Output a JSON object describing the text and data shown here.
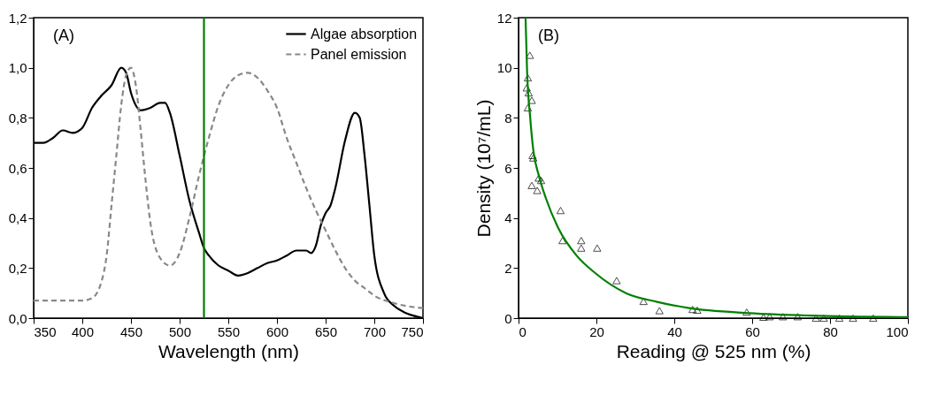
{
  "chart_data": [
    {
      "type": "line",
      "xlabel": "Wavelength (nm)",
      "annotations": [
        "(A)"
      ],
      "xlim": [
        350,
        750
      ],
      "ylim": [
        0,
        1.2
      ],
      "xticks": [
        350,
        400,
        450,
        500,
        550,
        600,
        650,
        700,
        750
      ],
      "yticks": [
        {
          "value": 0,
          "label": "0,0"
        },
        {
          "value": 0.2,
          "label": "0,2"
        },
        {
          "value": 0.4,
          "label": "0,4"
        },
        {
          "value": 0.6,
          "label": "0,6"
        },
        {
          "value": 0.8,
          "label": "0,8"
        },
        {
          "value": 1.0,
          "label": "1,0"
        },
        {
          "value": 1.2,
          "label": "1,2"
        }
      ],
      "legend": "top right",
      "grid": false,
      "ref_lines": [
        {
          "axis": "x",
          "value": 525,
          "color": "#008000"
        }
      ],
      "series": [
        {
          "name": "Algae absorption",
          "color": "#000000",
          "line_style": "solid",
          "x": [
            350,
            360,
            370,
            380,
            390,
            400,
            410,
            420,
            430,
            440,
            445,
            450,
            455,
            460,
            470,
            480,
            485,
            490,
            500,
            510,
            520,
            525,
            530,
            540,
            550,
            560,
            570,
            580,
            590,
            600,
            610,
            620,
            630,
            635,
            640,
            645,
            650,
            655,
            660,
            670,
            680,
            685,
            690,
            695,
            700,
            710,
            720,
            730,
            740,
            750
          ],
          "values": [
            0.7,
            0.7,
            0.72,
            0.75,
            0.74,
            0.76,
            0.84,
            0.89,
            0.93,
            1.0,
            0.98,
            0.9,
            0.85,
            0.83,
            0.84,
            0.86,
            0.86,
            0.82,
            0.65,
            0.47,
            0.34,
            0.28,
            0.25,
            0.21,
            0.19,
            0.17,
            0.18,
            0.2,
            0.22,
            0.23,
            0.25,
            0.27,
            0.27,
            0.26,
            0.29,
            0.37,
            0.42,
            0.45,
            0.52,
            0.71,
            0.82,
            0.8,
            0.65,
            0.45,
            0.25,
            0.1,
            0.05,
            0.025,
            0.01,
            0.0
          ]
        },
        {
          "name": "Panel emission",
          "color": "#888888",
          "line_style": "dashed",
          "x": [
            350,
            400,
            410,
            420,
            425,
            430,
            435,
            440,
            445,
            450,
            455,
            460,
            465,
            470,
            480,
            490,
            500,
            510,
            520,
            530,
            540,
            550,
            560,
            570,
            580,
            590,
            600,
            610,
            620,
            630,
            640,
            650,
            660,
            670,
            680,
            690,
            700,
            720,
            750
          ],
          "values": [
            0.07,
            0.07,
            0.08,
            0.15,
            0.25,
            0.45,
            0.65,
            0.85,
            0.97,
            1.0,
            0.93,
            0.75,
            0.55,
            0.38,
            0.24,
            0.21,
            0.26,
            0.4,
            0.57,
            0.72,
            0.85,
            0.93,
            0.97,
            0.98,
            0.96,
            0.91,
            0.84,
            0.72,
            0.62,
            0.52,
            0.43,
            0.35,
            0.27,
            0.2,
            0.15,
            0.12,
            0.09,
            0.06,
            0.04
          ]
        }
      ]
    },
    {
      "type": "scatter",
      "xlabel": "Reading @ 525 nm (%)",
      "ylabel": "Density (10⁷/mL)",
      "annotations": [
        "(B)"
      ],
      "xlim": [
        0,
        100
      ],
      "ylim": [
        0,
        12
      ],
      "xticks": [
        0,
        20,
        40,
        60,
        80,
        100
      ],
      "yticks": [
        0,
        2,
        4,
        6,
        8,
        10,
        12
      ],
      "grid": false,
      "series": [
        {
          "marker": "triangle",
          "color": "#000000",
          "x": [
            2.9,
            2.4,
            2.1,
            2.6,
            3.4,
            2.4,
            3.6,
            3.8,
            5.2,
            5.8,
            3.4,
            4.8,
            10.8,
            11.3,
            16.1,
            16.1,
            20.2,
            25.2,
            32.1,
            36.2,
            44.7,
            45.9,
            58.6,
            62.9,
            64.5,
            67.9,
            71.7,
            76.4,
            78.4,
            82.4,
            85.9,
            91.1
          ],
          "values": [
            10.5,
            9.6,
            9.2,
            9.0,
            8.7,
            8.4,
            6.5,
            6.4,
            5.6,
            5.5,
            5.3,
            5.1,
            4.3,
            3.1,
            3.1,
            2.8,
            2.8,
            1.5,
            0.67,
            0.3,
            0.35,
            0.32,
            0.24,
            0.04,
            0.06,
            0.06,
            0.06,
            0,
            0,
            0,
            0,
            0
          ]
        },
        {
          "type": "line",
          "color": "#008000",
          "x": [
            1.8,
            2.2,
            3.0,
            3.8,
            5.2,
            7.0,
            10.2,
            14.9,
            19.7,
            27.6,
            35.6,
            43.5,
            59.4,
            75.2,
            100
          ],
          "values": [
            12,
            9.85,
            8.0,
            6.7,
            5.7,
            4.8,
            3.6,
            2.5,
            1.8,
            1.0,
            0.65,
            0.41,
            0.2,
            0.1,
            0.04
          ]
        }
      ]
    }
  ]
}
